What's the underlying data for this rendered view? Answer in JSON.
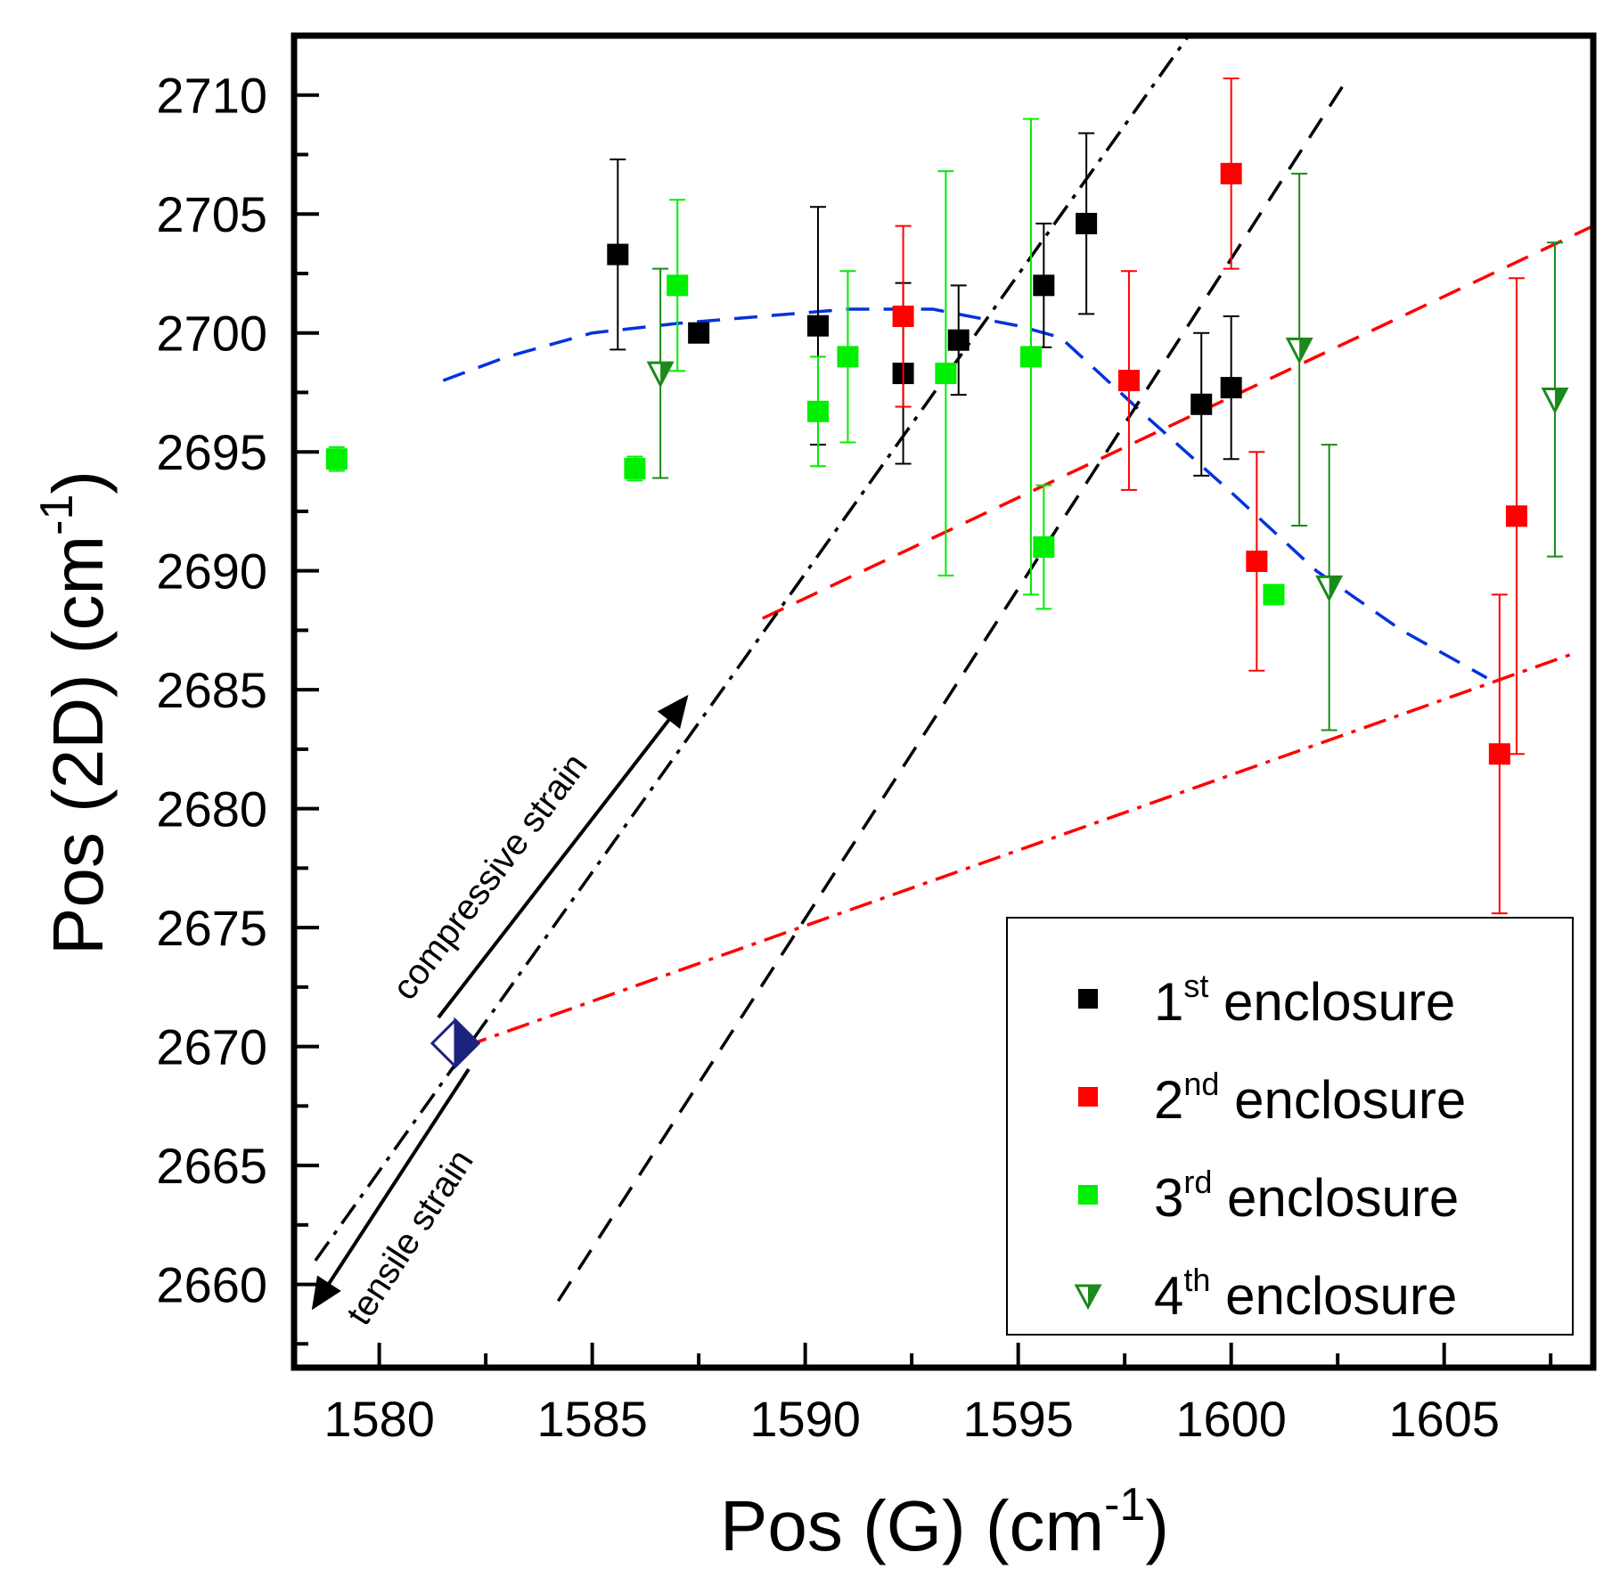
{
  "chart_data": {
    "type": "scatter",
    "title": "",
    "xlabel": "Pos (G) (cm",
    "xlabel_sup": "-1",
    "xlabel_close": ")",
    "ylabel": "Pos (2D) (cm",
    "ylabel_sup": "-1",
    "ylabel_close": ")",
    "xlim": [
      1578,
      1608.5
    ],
    "ylim": [
      2656.5,
      2712.5
    ],
    "xticks": [
      1580,
      1585,
      1590,
      1595,
      1600,
      1605
    ],
    "yticks": [
      2660,
      2665,
      2670,
      2675,
      2680,
      2685,
      2690,
      2695,
      2700,
      2705,
      2710
    ],
    "legend_position": "bottom-right",
    "series": [
      {
        "name": "1st enclosure",
        "label_pre": "1",
        "label_sup": "st",
        "label_post": " enclosure",
        "color": "#000000",
        "marker": "square",
        "points": [
          {
            "x": 1585.6,
            "y": 2703.3,
            "yerr": 4.0
          },
          {
            "x": 1587.5,
            "y": 2700.0,
            "yerr": 0
          },
          {
            "x": 1590.3,
            "y": 2700.3,
            "yerr": 5.0
          },
          {
            "x": 1592.3,
            "y": 2698.3,
            "yerr": 3.8
          },
          {
            "x": 1593.6,
            "y": 2699.7,
            "yerr": 2.3
          },
          {
            "x": 1595.6,
            "y": 2702.0,
            "yerr": 2.6
          },
          {
            "x": 1596.6,
            "y": 2704.6,
            "yerr": 3.8
          },
          {
            "x": 1599.3,
            "y": 2697.0,
            "yerr": 3.0
          },
          {
            "x": 1600.0,
            "y": 2697.7,
            "yerr": 3.0
          }
        ]
      },
      {
        "name": "2nd enclosure",
        "label_pre": "2",
        "label_sup": "nd",
        "label_post": " enclosure",
        "color": "#ff0000",
        "marker": "square",
        "points": [
          {
            "x": 1592.3,
            "y": 2700.7,
            "yerr": 3.8
          },
          {
            "x": 1597.6,
            "y": 2698.0,
            "yerr": 4.6
          },
          {
            "x": 1600.0,
            "y": 2706.7,
            "yerr": 4.0
          },
          {
            "x": 1600.6,
            "y": 2690.4,
            "yerr": 4.6
          },
          {
            "x": 1606.3,
            "y": 2682.3,
            "yerr": 6.7
          },
          {
            "x": 1606.7,
            "y": 2692.3,
            "yerr": 10.0
          }
        ]
      },
      {
        "name": "3rd enclosure",
        "label_pre": "3",
        "label_sup": "rd",
        "label_post": " enclosure",
        "color": "#00ee00",
        "marker": "square",
        "points": [
          {
            "x": 1579.0,
            "y": 2694.7,
            "yerr": 0.5
          },
          {
            "x": 1586.0,
            "y": 2694.3,
            "yerr": 0.5
          },
          {
            "x": 1587.0,
            "y": 2702.0,
            "yerr": 3.6
          },
          {
            "x": 1590.3,
            "y": 2696.7,
            "yerr": 2.3
          },
          {
            "x": 1591.0,
            "y": 2699.0,
            "yerr": 3.6
          },
          {
            "x": 1593.3,
            "y": 2698.3,
            "yerr": 8.5
          },
          {
            "x": 1595.3,
            "y": 2699.0,
            "yerr": 10.0
          },
          {
            "x": 1595.6,
            "y": 2691.0,
            "yerr": 2.6
          },
          {
            "x": 1601.0,
            "y": 2689.0,
            "yerr": 0
          }
        ]
      },
      {
        "name": "4th enclosure",
        "label_pre": "4",
        "label_sup": "th",
        "label_post": " enclosure",
        "color": "#1a8a1a",
        "marker": "triangle-down",
        "points": [
          {
            "x": 1586.6,
            "y": 2698.3,
            "yerr": 4.4
          },
          {
            "x": 1601.6,
            "y": 2699.3,
            "yerr": 7.4
          },
          {
            "x": 1602.3,
            "y": 2689.3,
            "yerr": 6.0
          },
          {
            "x": 1607.6,
            "y": 2697.2,
            "yerr": 6.6
          }
        ]
      }
    ],
    "reference_point": {
      "x": 1582,
      "y": 2670
    },
    "reference_lines": [
      {
        "name": "blue dashed curve",
        "color": "#0033dd",
        "style": "dashed",
        "points": [
          [
            1581.5,
            2698
          ],
          [
            1583,
            2699
          ],
          [
            1585,
            2700
          ],
          [
            1587,
            2700.4
          ],
          [
            1589,
            2700.7
          ],
          [
            1591,
            2701
          ],
          [
            1593,
            2701
          ],
          [
            1595,
            2700.3
          ],
          [
            1596,
            2699.8
          ],
          [
            1598,
            2696.5
          ],
          [
            1600,
            2693.3
          ],
          [
            1602,
            2690
          ],
          [
            1604,
            2687.5
          ],
          [
            1606,
            2685.5
          ]
        ]
      },
      {
        "name": "red dashed line",
        "color": "#ff0000",
        "style": "dashed",
        "points": [
          [
            1589,
            2688
          ],
          [
            1608.5,
            2704.5
          ]
        ]
      },
      {
        "name": "red dash-dot line",
        "color": "#ff0000",
        "style": "dashdot",
        "points": [
          [
            1582,
            2670
          ],
          [
            1608,
            2686.5
          ]
        ]
      },
      {
        "name": "black dash-dot line",
        "color": "#000000",
        "style": "dashdot",
        "points": [
          [
            1578.5,
            2661
          ],
          [
            1599,
            2712.5
          ]
        ]
      },
      {
        "name": "black dashed line",
        "color": "#000000",
        "style": "dashed",
        "points": [
          [
            1584.2,
            2659.3
          ],
          [
            1602.7,
            2710.6
          ]
        ]
      }
    ],
    "annotations": [
      {
        "text": "compressive strain",
        "direction": "toward upper-right"
      },
      {
        "text": "tensile strain",
        "direction": "toward lower-left"
      }
    ]
  }
}
